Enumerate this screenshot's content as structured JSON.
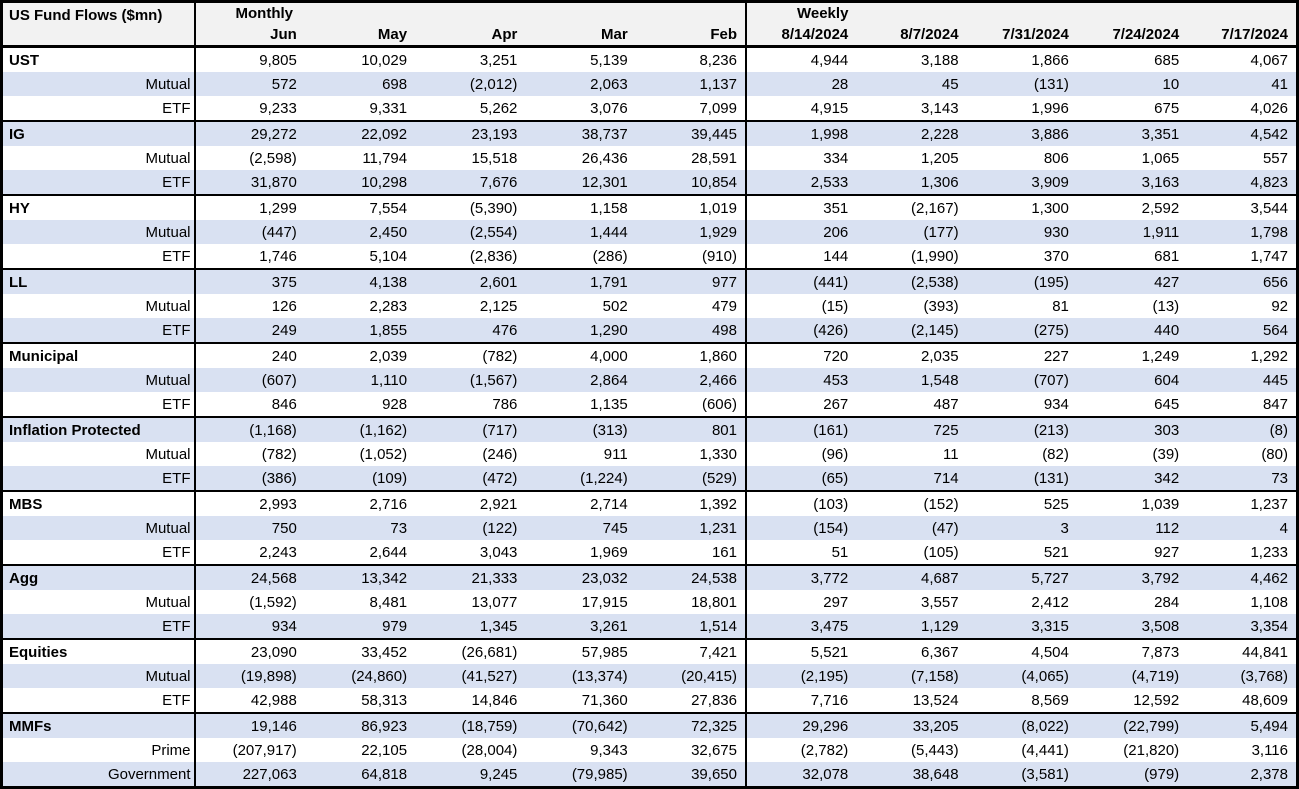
{
  "table": {
    "corner_label": "US Fund Flows ($mn)",
    "sections": [
      {
        "label": "Monthly",
        "columns": [
          "Jun",
          "May",
          "Apr",
          "Mar",
          "Feb"
        ]
      },
      {
        "label": "Weekly",
        "columns": [
          "8/14/2024",
          "8/7/2024",
          "7/31/2024",
          "7/24/2024",
          "7/17/2024"
        ]
      }
    ],
    "groups": [
      {
        "name": "UST",
        "rows": [
          {
            "label": "UST",
            "monthly": [
              "9,805",
              "10,029",
              "3,251",
              "5,139",
              "8,236"
            ],
            "weekly": [
              "4,944",
              "3,188",
              "1,866",
              "685",
              "4,067"
            ]
          },
          {
            "label": "Mutual",
            "monthly": [
              "572",
              "698",
              "(2,012)",
              "2,063",
              "1,137"
            ],
            "weekly": [
              "28",
              "45",
              "(131)",
              "10",
              "41"
            ]
          },
          {
            "label": "ETF",
            "monthly": [
              "9,233",
              "9,331",
              "5,262",
              "3,076",
              "7,099"
            ],
            "weekly": [
              "4,915",
              "3,143",
              "1,996",
              "675",
              "4,026"
            ]
          }
        ]
      },
      {
        "name": "IG",
        "rows": [
          {
            "label": "IG",
            "monthly": [
              "29,272",
              "22,092",
              "23,193",
              "38,737",
              "39,445"
            ],
            "weekly": [
              "1,998",
              "2,228",
              "3,886",
              "3,351",
              "4,542"
            ]
          },
          {
            "label": "Mutual",
            "monthly": [
              "(2,598)",
              "11,794",
              "15,518",
              "26,436",
              "28,591"
            ],
            "weekly": [
              "334",
              "1,205",
              "806",
              "1,065",
              "557"
            ]
          },
          {
            "label": "ETF",
            "monthly": [
              "31,870",
              "10,298",
              "7,676",
              "12,301",
              "10,854"
            ],
            "weekly": [
              "2,533",
              "1,306",
              "3,909",
              "3,163",
              "4,823"
            ]
          }
        ]
      },
      {
        "name": "HY",
        "rows": [
          {
            "label": "HY",
            "monthly": [
              "1,299",
              "7,554",
              "(5,390)",
              "1,158",
              "1,019"
            ],
            "weekly": [
              "351",
              "(2,167)",
              "1,300",
              "2,592",
              "3,544"
            ]
          },
          {
            "label": "Mutual",
            "monthly": [
              "(447)",
              "2,450",
              "(2,554)",
              "1,444",
              "1,929"
            ],
            "weekly": [
              "206",
              "(177)",
              "930",
              "1,911",
              "1,798"
            ]
          },
          {
            "label": "ETF",
            "monthly": [
              "1,746",
              "5,104",
              "(2,836)",
              "(286)",
              "(910)"
            ],
            "weekly": [
              "144",
              "(1,990)",
              "370",
              "681",
              "1,747"
            ]
          }
        ]
      },
      {
        "name": "LL",
        "rows": [
          {
            "label": "LL",
            "monthly": [
              "375",
              "4,138",
              "2,601",
              "1,791",
              "977"
            ],
            "weekly": [
              "(441)",
              "(2,538)",
              "(195)",
              "427",
              "656"
            ]
          },
          {
            "label": "Mutual",
            "monthly": [
              "126",
              "2,283",
              "2,125",
              "502",
              "479"
            ],
            "weekly": [
              "(15)",
              "(393)",
              "81",
              "(13)",
              "92"
            ]
          },
          {
            "label": "ETF",
            "monthly": [
              "249",
              "1,855",
              "476",
              "1,290",
              "498"
            ],
            "weekly": [
              "(426)",
              "(2,145)",
              "(275)",
              "440",
              "564"
            ]
          }
        ]
      },
      {
        "name": "Municipal",
        "rows": [
          {
            "label": "Municipal",
            "monthly": [
              "240",
              "2,039",
              "(782)",
              "4,000",
              "1,860"
            ],
            "weekly": [
              "720",
              "2,035",
              "227",
              "1,249",
              "1,292"
            ]
          },
          {
            "label": "Mutual",
            "monthly": [
              "(607)",
              "1,110",
              "(1,567)",
              "2,864",
              "2,466"
            ],
            "weekly": [
              "453",
              "1,548",
              "(707)",
              "604",
              "445"
            ]
          },
          {
            "label": "ETF",
            "monthly": [
              "846",
              "928",
              "786",
              "1,135",
              "(606)"
            ],
            "weekly": [
              "267",
              "487",
              "934",
              "645",
              "847"
            ]
          }
        ]
      },
      {
        "name": "Inflation Protected",
        "rows": [
          {
            "label": "Inflation Protected",
            "monthly": [
              "(1,168)",
              "(1,162)",
              "(717)",
              "(313)",
              "801"
            ],
            "weekly": [
              "(161)",
              "725",
              "(213)",
              "303",
              "(8)"
            ]
          },
          {
            "label": "Mutual",
            "monthly": [
              "(782)",
              "(1,052)",
              "(246)",
              "911",
              "1,330"
            ],
            "weekly": [
              "(96)",
              "11",
              "(82)",
              "(39)",
              "(80)"
            ]
          },
          {
            "label": "ETF",
            "monthly": [
              "(386)",
              "(109)",
              "(472)",
              "(1,224)",
              "(529)"
            ],
            "weekly": [
              "(65)",
              "714",
              "(131)",
              "342",
              "73"
            ]
          }
        ]
      },
      {
        "name": "MBS",
        "rows": [
          {
            "label": "MBS",
            "monthly": [
              "2,993",
              "2,716",
              "2,921",
              "2,714",
              "1,392"
            ],
            "weekly": [
              "(103)",
              "(152)",
              "525",
              "1,039",
              "1,237"
            ]
          },
          {
            "label": "Mutual",
            "monthly": [
              "750",
              "73",
              "(122)",
              "745",
              "1,231"
            ],
            "weekly": [
              "(154)",
              "(47)",
              "3",
              "112",
              "4"
            ]
          },
          {
            "label": "ETF",
            "monthly": [
              "2,243",
              "2,644",
              "3,043",
              "1,969",
              "161"
            ],
            "weekly": [
              "51",
              "(105)",
              "521",
              "927",
              "1,233"
            ]
          }
        ]
      },
      {
        "name": "Agg",
        "rows": [
          {
            "label": "Agg",
            "monthly": [
              "24,568",
              "13,342",
              "21,333",
              "23,032",
              "24,538"
            ],
            "weekly": [
              "3,772",
              "4,687",
              "5,727",
              "3,792",
              "4,462"
            ]
          },
          {
            "label": "Mutual",
            "monthly": [
              "(1,592)",
              "8,481",
              "13,077",
              "17,915",
              "18,801"
            ],
            "weekly": [
              "297",
              "3,557",
              "2,412",
              "284",
              "1,108"
            ]
          },
          {
            "label": "ETF",
            "monthly": [
              "934",
              "979",
              "1,345",
              "3,261",
              "1,514"
            ],
            "weekly": [
              "3,475",
              "1,129",
              "3,315",
              "3,508",
              "3,354"
            ]
          }
        ]
      },
      {
        "name": "Equities",
        "rows": [
          {
            "label": "Equities",
            "monthly": [
              "23,090",
              "33,452",
              "(26,681)",
              "57,985",
              "7,421"
            ],
            "weekly": [
              "5,521",
              "6,367",
              "4,504",
              "7,873",
              "44,841"
            ]
          },
          {
            "label": "Mutual",
            "monthly": [
              "(19,898)",
              "(24,860)",
              "(41,527)",
              "(13,374)",
              "(20,415)"
            ],
            "weekly": [
              "(2,195)",
              "(7,158)",
              "(4,065)",
              "(4,719)",
              "(3,768)"
            ]
          },
          {
            "label": "ETF",
            "monthly": [
              "42,988",
              "58,313",
              "14,846",
              "71,360",
              "27,836"
            ],
            "weekly": [
              "7,716",
              "13,524",
              "8,569",
              "12,592",
              "48,609"
            ]
          }
        ]
      },
      {
        "name": "MMFs",
        "rows": [
          {
            "label": "MMFs",
            "monthly": [
              "19,146",
              "86,923",
              "(18,759)",
              "(70,642)",
              "72,325"
            ],
            "weekly": [
              "29,296",
              "33,205",
              "(8,022)",
              "(22,799)",
              "5,494"
            ]
          },
          {
            "label": "Prime",
            "monthly": [
              "(207,917)",
              "22,105",
              "(28,004)",
              "9,343",
              "32,675"
            ],
            "weekly": [
              "(2,782)",
              "(5,443)",
              "(4,441)",
              "(21,820)",
              "3,116"
            ]
          },
          {
            "label": "Government",
            "monthly": [
              "227,063",
              "64,818",
              "9,245",
              "(79,985)",
              "39,650"
            ],
            "weekly": [
              "32,078",
              "38,648",
              "(3,581)",
              "(979)",
              "2,378"
            ]
          }
        ]
      }
    ]
  },
  "colors": {
    "row_shade": "#d9e1f2",
    "header_bg": "#f2f2f2",
    "border": "#000000"
  }
}
